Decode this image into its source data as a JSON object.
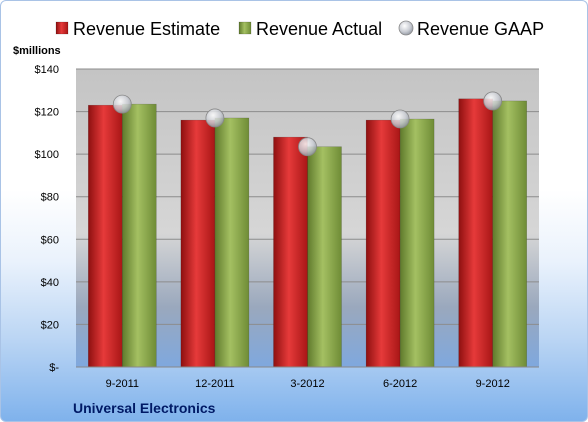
{
  "chart_data": {
    "type": "bar",
    "categories": [
      "9-2011",
      "12-2011",
      "3-2012",
      "6-2012",
      "9-2012"
    ],
    "series": [
      {
        "name": "Revenue Estimate",
        "kind": "bar",
        "color": "#d42a2a",
        "values": [
          123,
          116,
          108,
          116,
          126
        ]
      },
      {
        "name": "Revenue Actual",
        "kind": "bar",
        "color": "#8aa84a",
        "values": [
          123.5,
          117,
          103.5,
          116.5,
          125
        ]
      },
      {
        "name": "Revenue GAAP",
        "kind": "marker",
        "color": "#c9ccd3",
        "values": [
          123.5,
          117,
          103.5,
          116.5,
          125
        ]
      }
    ],
    "ylabel": "$millions",
    "ylim": [
      0,
      140
    ],
    "yticks": [
      {
        "value": 0,
        "label": "$-"
      },
      {
        "value": 20,
        "label": "$20"
      },
      {
        "value": 40,
        "label": "$40"
      },
      {
        "value": 60,
        "label": "$60"
      },
      {
        "value": 80,
        "label": "$80"
      },
      {
        "value": 100,
        "label": "$100"
      },
      {
        "value": 120,
        "label": "$120"
      },
      {
        "value": 140,
        "label": "$140"
      }
    ],
    "grid": true,
    "legend_position": "top",
    "footer": "Universal Electronics"
  }
}
